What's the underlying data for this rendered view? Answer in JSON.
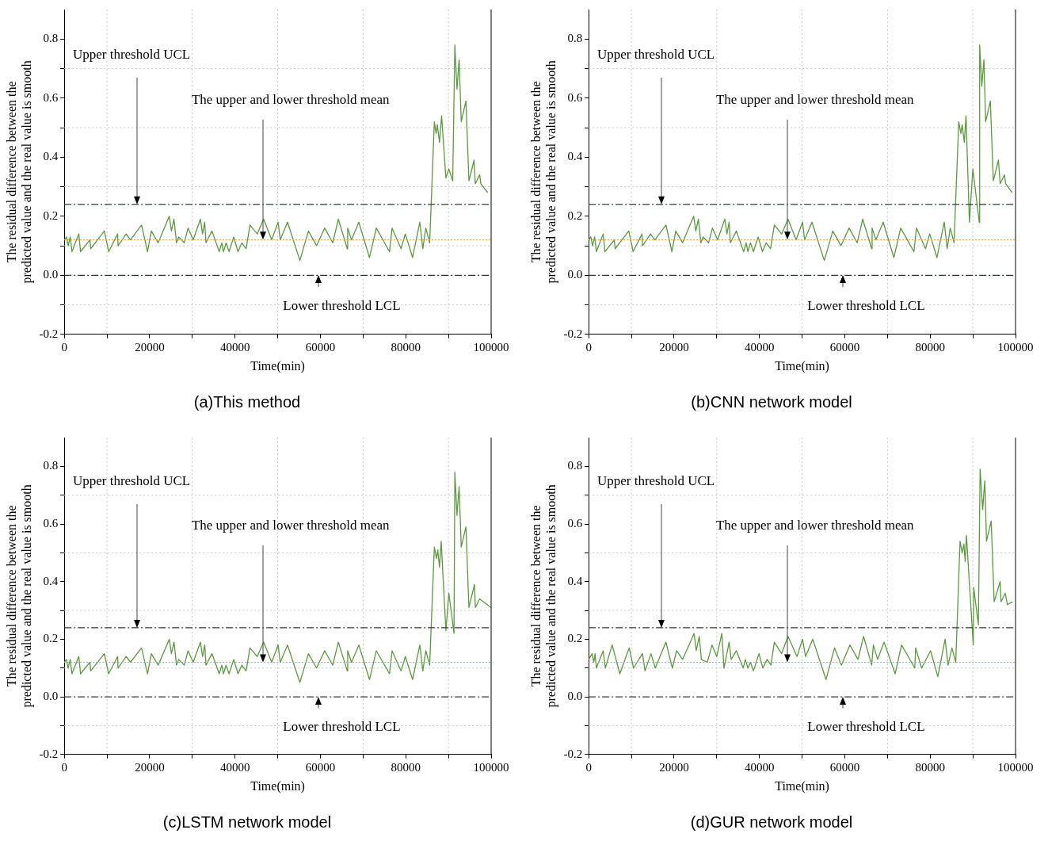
{
  "chart_data": [
    {
      "type": "line",
      "title": "(a)This method",
      "xlabel": "Time(min)",
      "ylabel": "The residual difference between the predicted value and the real value is smooth",
      "x": [
        0,
        500,
        900,
        1400,
        1800,
        3400,
        3800,
        6000,
        6200,
        9400,
        10400,
        12500,
        12600,
        14500,
        15500,
        18100,
        19500,
        20400,
        22000,
        24600,
        25100,
        25700,
        26300,
        26800,
        28100,
        29000,
        30200,
        31900,
        32400,
        32900,
        33200,
        34600,
        36300,
        36900,
        37300,
        37900,
        38600,
        39700,
        40700,
        41600,
        42600,
        43500,
        45200,
        46700,
        48600,
        50100,
        50600,
        52300,
        55200,
        57200,
        59100,
        61000,
        62900,
        64200,
        66300,
        66400,
        67300,
        69000,
        71500,
        73100,
        76200,
        76800,
        78900,
        79900,
        81600,
        83300,
        84000,
        84700,
        85600,
        86700,
        87100,
        87400,
        87900,
        88400,
        89400,
        90100,
        91000,
        91500,
        92000,
        92500,
        93000,
        94100,
        94800,
        96000,
        96300,
        97300,
        97600,
        99200
      ],
      "series": [
        {
          "color": "#5b9a3e",
          "values": [
            0.12,
            0.13,
            0.1,
            0.13,
            0.08,
            0.14,
            0.08,
            0.12,
            0.09,
            0.15,
            0.08,
            0.14,
            0.1,
            0.14,
            0.12,
            0.17,
            0.08,
            0.15,
            0.11,
            0.2,
            0.15,
            0.19,
            0.11,
            0.13,
            0.11,
            0.16,
            0.12,
            0.19,
            0.14,
            0.18,
            0.11,
            0.15,
            0.08,
            0.11,
            0.08,
            0.11,
            0.08,
            0.13,
            0.08,
            0.11,
            0.09,
            0.17,
            0.14,
            0.19,
            0.12,
            0.18,
            0.12,
            0.18,
            0.05,
            0.15,
            0.1,
            0.16,
            0.11,
            0.19,
            0.09,
            0.16,
            0.12,
            0.18,
            0.06,
            0.16,
            0.08,
            0.16,
            0.09,
            0.14,
            0.06,
            0.18,
            0.09,
            0.16,
            0.11,
            0.52,
            0.48,
            0.51,
            0.45,
            0.54,
            0.33,
            0.36,
            0.32,
            0.78,
            0.63,
            0.73,
            0.52,
            0.59,
            0.32,
            0.39,
            0.31,
            0.34,
            0.31,
            0.28
          ]
        }
      ],
      "xlim": [
        0,
        100000
      ],
      "xticks": [
        0,
        {
          "value": 10000,
          "label": null
        },
        20000,
        {
          "value": 30000,
          "label": null
        },
        40000,
        {
          "value": 50000,
          "label": null
        },
        60000,
        {
          "value": 70000,
          "label": null
        },
        80000,
        {
          "value": 90000,
          "label": null
        },
        100000
      ],
      "ylim": [
        -0.2,
        0.9
      ],
      "yticks": [
        {
          "value": -0.2,
          "label": "-0.2"
        },
        {
          "value": -0.1,
          "label": null
        },
        {
          "value": 0,
          "label": "0.0"
        },
        {
          "value": 0.1,
          "label": null
        },
        {
          "value": 0.2,
          "label": "0.2"
        },
        {
          "value": 0.3,
          "label": null
        },
        {
          "value": 0.4,
          "label": "0.4"
        },
        {
          "value": 0.5,
          "label": null
        },
        {
          "value": 0.6,
          "label": "0.6"
        },
        {
          "value": 0.7,
          "label": null
        },
        {
          "value": 0.8,
          "label": "0.8"
        }
      ],
      "ref_lines": [
        {
          "axis": "y",
          "value": 0.24,
          "label": "Upper threshold UCL",
          "color": "#2e3a2e",
          "line_style": "dashed"
        },
        {
          "axis": "y",
          "value": 0.12,
          "label": "The upper and lower threshold mean",
          "color": "#f0a040",
          "line_style": "dotted"
        },
        {
          "axis": "y",
          "value": 0,
          "label": "Lower threshold LCL",
          "color": "#2e3a2e",
          "line_style": "dashed"
        }
      ],
      "grid": true,
      "legend": false,
      "marker": "none",
      "line_style": "solid"
    },
    {
      "type": "line",
      "title": "(b)CNN network model",
      "xlabel": "Time(min)",
      "ylabel": "The residual difference between the predicted value and the real value is smooth",
      "x": [
        0,
        500,
        900,
        1400,
        1800,
        3400,
        3800,
        6000,
        6200,
        9400,
        10400,
        12500,
        12600,
        14500,
        15500,
        18100,
        19500,
        20400,
        22000,
        24600,
        25100,
        25700,
        26300,
        26800,
        28100,
        29000,
        30200,
        31900,
        32400,
        32900,
        33200,
        34600,
        36300,
        36900,
        37300,
        37900,
        38600,
        39700,
        40700,
        41600,
        42600,
        43500,
        45200,
        46700,
        48600,
        50100,
        50600,
        52300,
        55200,
        57200,
        59100,
        61000,
        62900,
        64200,
        66300,
        66400,
        67300,
        69000,
        71500,
        73100,
        76200,
        76800,
        78900,
        79900,
        81600,
        83300,
        84000,
        84700,
        85600,
        86700,
        87200,
        87500,
        88000,
        88400,
        89200,
        90000,
        91500,
        91600,
        92100,
        92600,
        93000,
        94100,
        94800,
        96000,
        96400,
        97400,
        97700,
        99200
      ],
      "series": [
        {
          "color": "#5b9a3e",
          "values": [
            0.12,
            0.13,
            0.1,
            0.13,
            0.08,
            0.14,
            0.08,
            0.12,
            0.09,
            0.15,
            0.08,
            0.14,
            0.1,
            0.14,
            0.12,
            0.17,
            0.08,
            0.15,
            0.11,
            0.2,
            0.15,
            0.19,
            0.11,
            0.13,
            0.11,
            0.16,
            0.12,
            0.19,
            0.14,
            0.18,
            0.11,
            0.15,
            0.08,
            0.11,
            0.08,
            0.11,
            0.08,
            0.13,
            0.08,
            0.11,
            0.09,
            0.17,
            0.14,
            0.19,
            0.12,
            0.18,
            0.12,
            0.18,
            0.05,
            0.15,
            0.1,
            0.16,
            0.11,
            0.19,
            0.09,
            0.16,
            0.12,
            0.18,
            0.06,
            0.16,
            0.08,
            0.16,
            0.09,
            0.14,
            0.06,
            0.18,
            0.09,
            0.16,
            0.11,
            0.52,
            0.48,
            0.51,
            0.45,
            0.54,
            0.18,
            0.36,
            0.18,
            0.78,
            0.64,
            0.73,
            0.52,
            0.59,
            0.32,
            0.39,
            0.31,
            0.34,
            0.31,
            0.28
          ]
        }
      ],
      "xlim": [
        0,
        100000
      ],
      "xticks": [
        0,
        {
          "value": 10000,
          "label": null
        },
        20000,
        {
          "value": 30000,
          "label": null
        },
        40000,
        {
          "value": 50000,
          "label": null
        },
        60000,
        {
          "value": 70000,
          "label": null
        },
        80000,
        {
          "value": 90000,
          "label": null
        },
        100000
      ],
      "ylim": [
        -0.2,
        0.9
      ],
      "yticks": [
        {
          "value": -0.2,
          "label": "-0.2"
        },
        {
          "value": -0.1,
          "label": null
        },
        {
          "value": 0,
          "label": "0.0"
        },
        {
          "value": 0.1,
          "label": null
        },
        {
          "value": 0.2,
          "label": "0.2"
        },
        {
          "value": 0.3,
          "label": null
        },
        {
          "value": 0.4,
          "label": "0.4"
        },
        {
          "value": 0.5,
          "label": null
        },
        {
          "value": 0.6,
          "label": "0.6"
        },
        {
          "value": 0.7,
          "label": null
        },
        {
          "value": 0.8,
          "label": "0.8"
        }
      ],
      "ref_lines": [
        {
          "axis": "y",
          "value": 0.24,
          "label": "Upper threshold UCL",
          "color": "#2e3a2e",
          "line_style": "dashed"
        },
        {
          "axis": "y",
          "value": 0.12,
          "label": "The upper and lower threshold mean",
          "color": "#f0a040",
          "line_style": "dotted"
        },
        {
          "axis": "y",
          "value": 0,
          "label": "Lower threshold LCL",
          "color": "#2e3a2e",
          "line_style": "dashed"
        }
      ],
      "grid": true,
      "legend": false,
      "marker": "none",
      "line_style": "solid"
    },
    {
      "type": "line",
      "title": "(c)LSTM network model",
      "xlabel": "Time(min)",
      "ylabel": "The residual difference between the predicted value and the real value is smooth",
      "x": [
        0,
        500,
        900,
        1400,
        1800,
        3400,
        3800,
        6000,
        6200,
        9400,
        10400,
        12500,
        12600,
        14500,
        15500,
        18100,
        19500,
        20400,
        22000,
        24600,
        25100,
        25700,
        26300,
        26800,
        28100,
        29000,
        30200,
        31900,
        32400,
        32900,
        33200,
        34600,
        36300,
        36900,
        37300,
        37900,
        38600,
        39700,
        40700,
        41600,
        42600,
        43500,
        45200,
        46700,
        48600,
        50100,
        50600,
        52300,
        55200,
        57200,
        59100,
        61000,
        62900,
        64200,
        66300,
        66400,
        67300,
        69000,
        71500,
        73100,
        76200,
        76800,
        78900,
        79900,
        81600,
        83300,
        84000,
        84700,
        85600,
        86700,
        87200,
        87500,
        87900,
        88300,
        89400,
        90100,
        91300,
        91500,
        92000,
        92500,
        93000,
        94100,
        94800,
        96100,
        96300,
        97300,
        100000
      ],
      "series": [
        {
          "color": "#5b9a3e",
          "values": [
            0.12,
            0.13,
            0.1,
            0.13,
            0.08,
            0.14,
            0.08,
            0.12,
            0.09,
            0.15,
            0.08,
            0.14,
            0.1,
            0.14,
            0.12,
            0.17,
            0.08,
            0.15,
            0.11,
            0.2,
            0.15,
            0.19,
            0.11,
            0.13,
            0.11,
            0.16,
            0.12,
            0.19,
            0.14,
            0.18,
            0.11,
            0.15,
            0.08,
            0.11,
            0.08,
            0.11,
            0.08,
            0.13,
            0.08,
            0.11,
            0.09,
            0.17,
            0.14,
            0.19,
            0.12,
            0.18,
            0.12,
            0.18,
            0.05,
            0.15,
            0.1,
            0.16,
            0.11,
            0.19,
            0.09,
            0.16,
            0.12,
            0.18,
            0.06,
            0.16,
            0.08,
            0.16,
            0.09,
            0.14,
            0.06,
            0.18,
            0.09,
            0.16,
            0.11,
            0.52,
            0.48,
            0.51,
            0.45,
            0.54,
            0.23,
            0.36,
            0.22,
            0.78,
            0.63,
            0.73,
            0.52,
            0.59,
            0.31,
            0.39,
            0.31,
            0.34,
            0.31
          ]
        }
      ],
      "xlim": [
        0,
        100000
      ],
      "xticks": [
        0,
        {
          "value": 10000,
          "label": null
        },
        20000,
        {
          "value": 30000,
          "label": null
        },
        40000,
        {
          "value": 50000,
          "label": null
        },
        60000,
        {
          "value": 70000,
          "label": null
        },
        80000,
        {
          "value": 90000,
          "label": null
        },
        100000
      ],
      "ylim": [
        -0.2,
        0.9
      ],
      "yticks": [
        {
          "value": -0.2,
          "label": "-0.2"
        },
        {
          "value": -0.1,
          "label": null
        },
        {
          "value": 0,
          "label": "0.0"
        },
        {
          "value": 0.1,
          "label": null
        },
        {
          "value": 0.2,
          "label": "0.2"
        },
        {
          "value": 0.3,
          "label": null
        },
        {
          "value": 0.4,
          "label": "0.4"
        },
        {
          "value": 0.5,
          "label": null
        },
        {
          "value": 0.6,
          "label": "0.6"
        },
        {
          "value": 0.7,
          "label": null
        },
        {
          "value": 0.8,
          "label": "0.8"
        }
      ],
      "ref_lines": [
        {
          "axis": "y",
          "value": 0.24,
          "label": "Upper threshold UCL",
          "color": "#2e3a2e",
          "line_style": "dashed"
        },
        {
          "axis": "y",
          "value": 0.12,
          "label": "The upper and lower threshold mean",
          "color": "#f0a040",
          "line_style": "dotted"
        },
        {
          "axis": "y",
          "value": 0,
          "label": "Lower threshold LCL",
          "color": "#2e3a2e",
          "line_style": "dashed"
        }
      ],
      "grid": true,
      "legend": false,
      "marker": "none",
      "line_style": "solid"
    },
    {
      "type": "line",
      "title": "(d)GUR network model",
      "xlabel": "Time(min)",
      "ylabel": "The residual difference between the predicted value and the real value is smooth",
      "x": [
        0,
        800,
        1200,
        1500,
        1800,
        3400,
        3900,
        5500,
        7300,
        9500,
        10500,
        12600,
        13200,
        14600,
        15600,
        18100,
        19600,
        20600,
        22000,
        24700,
        25200,
        25900,
        26400,
        27800,
        28900,
        30000,
        31200,
        31700,
        32900,
        33400,
        34600,
        36200,
        36700,
        37300,
        37900,
        38600,
        39900,
        40800,
        41800,
        42700,
        43500,
        45200,
        46700,
        48800,
        50100,
        50800,
        52500,
        55600,
        57600,
        59200,
        61200,
        63100,
        64400,
        66300,
        66700,
        67700,
        69200,
        71800,
        73300,
        76400,
        76600,
        78000,
        80100,
        81800,
        83500,
        84200,
        85100,
        86000,
        87000,
        87500,
        87900,
        88200,
        88500,
        90100,
        90200,
        91300,
        91700,
        92300,
        92800,
        93200,
        94300,
        95000,
        96400,
        96600,
        97600,
        98100,
        99300
      ],
      "series": [
        {
          "color": "#5b9a3e",
          "values": [
            0.13,
            0.15,
            0.12,
            0.15,
            0.1,
            0.16,
            0.1,
            0.18,
            0.08,
            0.17,
            0.1,
            0.15,
            0.09,
            0.15,
            0.1,
            0.19,
            0.1,
            0.16,
            0.13,
            0.22,
            0.16,
            0.21,
            0.13,
            0.12,
            0.18,
            0.14,
            0.22,
            0.1,
            0.19,
            0.13,
            0.16,
            0.1,
            0.13,
            0.1,
            0.12,
            0.09,
            0.15,
            0.1,
            0.13,
            0.11,
            0.19,
            0.15,
            0.21,
            0.14,
            0.2,
            0.14,
            0.2,
            0.06,
            0.17,
            0.11,
            0.18,
            0.13,
            0.21,
            0.11,
            0.18,
            0.13,
            0.19,
            0.08,
            0.18,
            0.1,
            0.17,
            0.1,
            0.16,
            0.07,
            0.2,
            0.11,
            0.17,
            0.12,
            0.54,
            0.5,
            0.53,
            0.47,
            0.56,
            0.18,
            0.38,
            0.25,
            0.79,
            0.65,
            0.75,
            0.54,
            0.61,
            0.33,
            0.4,
            0.33,
            0.36,
            0.32,
            0.33
          ]
        }
      ],
      "xlim": [
        0,
        100000
      ],
      "xticks": [
        0,
        {
          "value": 10000,
          "label": null
        },
        20000,
        {
          "value": 30000,
          "label": null
        },
        40000,
        {
          "value": 50000,
          "label": null
        },
        60000,
        {
          "value": 70000,
          "label": null
        },
        80000,
        {
          "value": 90000,
          "label": null
        },
        100000
      ],
      "ylim": [
        -0.2,
        0.9
      ],
      "yticks": [
        {
          "value": -0.2,
          "label": "-0.2"
        },
        {
          "value": -0.1,
          "label": null
        },
        {
          "value": 0,
          "label": "0.0"
        },
        {
          "value": 0.1,
          "label": null
        },
        {
          "value": 0.2,
          "label": "0.2"
        },
        {
          "value": 0.3,
          "label": null
        },
        {
          "value": 0.4,
          "label": "0.4"
        },
        {
          "value": 0.5,
          "label": null
        },
        {
          "value": 0.6,
          "label": "0.6"
        },
        {
          "value": 0.7,
          "label": null
        },
        {
          "value": 0.8,
          "label": "0.8"
        }
      ],
      "ref_lines": [
        {
          "axis": "y",
          "value": 0.24,
          "label": "Upper threshold UCL",
          "color": "#2e3a2e",
          "line_style": "dashed"
        },
        {
          "axis": "y",
          "value": 0.12,
          "label": "The upper and lower threshold mean",
          "color": "#f0a040",
          "line_style": "dotted"
        },
        {
          "axis": "y",
          "value": 0,
          "label": "Lower threshold LCL",
          "color": "#2e3a2e",
          "line_style": "dashed"
        }
      ],
      "grid": true,
      "legend": false,
      "marker": "none",
      "line_style": "solid"
    }
  ]
}
